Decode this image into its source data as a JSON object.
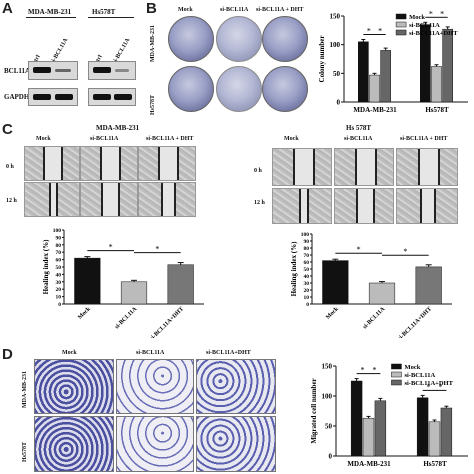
{
  "panels": {
    "A": {
      "letter": "A",
      "cell_lines": [
        "MDA-MB-231",
        "Hs578T"
      ],
      "lane_labels": [
        "ctrl",
        "si-BCL11A",
        "ctrl",
        "si-BCL11A"
      ],
      "row_labels": [
        "BCL11A",
        "GAPDH"
      ]
    },
    "B": {
      "letter": "B",
      "col_labels": [
        "Mock",
        "si-BCL11A",
        "si-BCL11A + DHT"
      ],
      "row_labels": [
        "MDA-MB-231",
        "Hs578T"
      ]
    },
    "C": {
      "letter": "C",
      "left_title": "MDA-MB-231",
      "right_title": "Hs 578T",
      "col_labels": [
        "Mock",
        "si-BCL11A",
        "si-BCL11A + DHT"
      ],
      "time_labels": [
        "0 h",
        "12 h"
      ]
    },
    "D": {
      "letter": "D",
      "col_labels": [
        "Mock",
        "si-BCL11A",
        "si-BCL11A+DHT"
      ],
      "row_labels": [
        "MDA-MB-231",
        "Hs578T"
      ]
    }
  },
  "chart_data": [
    {
      "id": "colony",
      "type": "bar",
      "categories": [
        "MDA-MB-231",
        "Hs578T"
      ],
      "series": [
        {
          "name": "Mock",
          "values": [
            105,
            135
          ],
          "errors": [
            4,
            4
          ],
          "color": "#111111"
        },
        {
          "name": "si-BCL11A",
          "values": [
            47,
            62
          ],
          "errors": [
            3,
            3
          ],
          "color": "#bbbbbb"
        },
        {
          "name": "si-BCL11A+DHT",
          "values": [
            90,
            127
          ],
          "errors": [
            4,
            4
          ],
          "color": "#666666"
        }
      ],
      "ylabel": "Colony number",
      "ylim": [
        0,
        150
      ],
      "yticks": [
        0,
        50,
        100,
        150
      ],
      "legend": "top-right",
      "significance": "*"
    },
    {
      "id": "healing-left",
      "type": "bar",
      "categories": [
        "Mock",
        "si-BCL11A",
        "si-BCL11A+DHT"
      ],
      "series": [
        {
          "name": "",
          "values": [
            62,
            30,
            53
          ],
          "errors": [
            2,
            2,
            3
          ],
          "colors": [
            "#111111",
            "#bbbbbb",
            "#777777"
          ]
        }
      ],
      "ylabel": "Healing index (%)",
      "ylim": [
        0,
        100
      ],
      "yticks": [
        0,
        10,
        20,
        30,
        40,
        50,
        60,
        70,
        80,
        90,
        100
      ],
      "significance": "*"
    },
    {
      "id": "healing-right",
      "type": "bar",
      "categories": [
        "Mock",
        "si-BCL11A",
        "si-BCL11A+DHT"
      ],
      "series": [
        {
          "name": "",
          "values": [
            62,
            30,
            53
          ],
          "errors": [
            2,
            2,
            3
          ],
          "colors": [
            "#111111",
            "#bbbbbb",
            "#777777"
          ]
        }
      ],
      "ylabel": "Healing index (%)",
      "ylim": [
        0,
        100
      ],
      "yticks": [
        0,
        10,
        20,
        30,
        40,
        50,
        60,
        70,
        80,
        90,
        100
      ],
      "significance": "*"
    },
    {
      "id": "migration",
      "type": "bar",
      "categories": [
        "MDA-MB-231",
        "Hs578T"
      ],
      "series": [
        {
          "name": "Mock",
          "values": [
            125,
            97
          ],
          "errors": [
            4,
            4
          ],
          "color": "#111111"
        },
        {
          "name": "si-BCL11A",
          "values": [
            63,
            57
          ],
          "errors": [
            3,
            3
          ],
          "color": "#bbbbbb"
        },
        {
          "name": "si-BCL11A+DHT",
          "values": [
            92,
            80
          ],
          "errors": [
            4,
            3
          ],
          "color": "#666666"
        }
      ],
      "ylabel": "Migrated cell number",
      "ylim": [
        0,
        150
      ],
      "yticks": [
        0,
        50,
        100,
        150
      ],
      "legend": "top-right",
      "significance": "*"
    }
  ]
}
